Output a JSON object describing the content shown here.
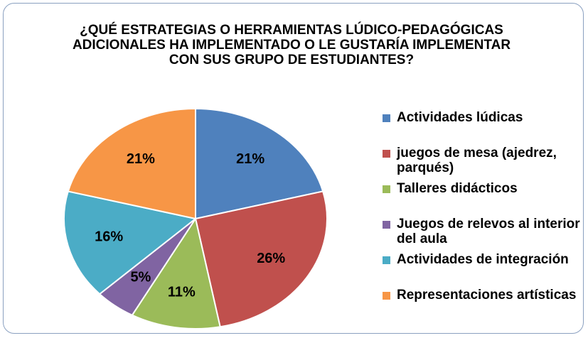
{
  "chart_data": {
    "type": "pie",
    "title": "¿QUÉ ESTRATEGIAS O HERRAMIENTAS LÚDICO-PEDAGÓGICAS ADICIONALES  HA IMPLEMENTADO O LE GUSTARÍA IMPLEMENTAR CON SUS GRUPO DE ESTUDIANTES?",
    "categories": [
      "Actividades lúdicas",
      "juegos de mesa (ajedrez, parqués)",
      "Talleres didácticos",
      "Juegos de relevos al interior del aula",
      "Actividades de integración",
      "Representaciones artísticas"
    ],
    "values": [
      21,
      26,
      11,
      5,
      16,
      21
    ],
    "value_labels": [
      "21%",
      "26%",
      "11%",
      "5%",
      "16%",
      "21%"
    ],
    "colors": [
      "#4f81bd",
      "#c0504d",
      "#9bbb59",
      "#8064a2",
      "#4bacc6",
      "#f79646"
    ],
    "legend": "right"
  }
}
